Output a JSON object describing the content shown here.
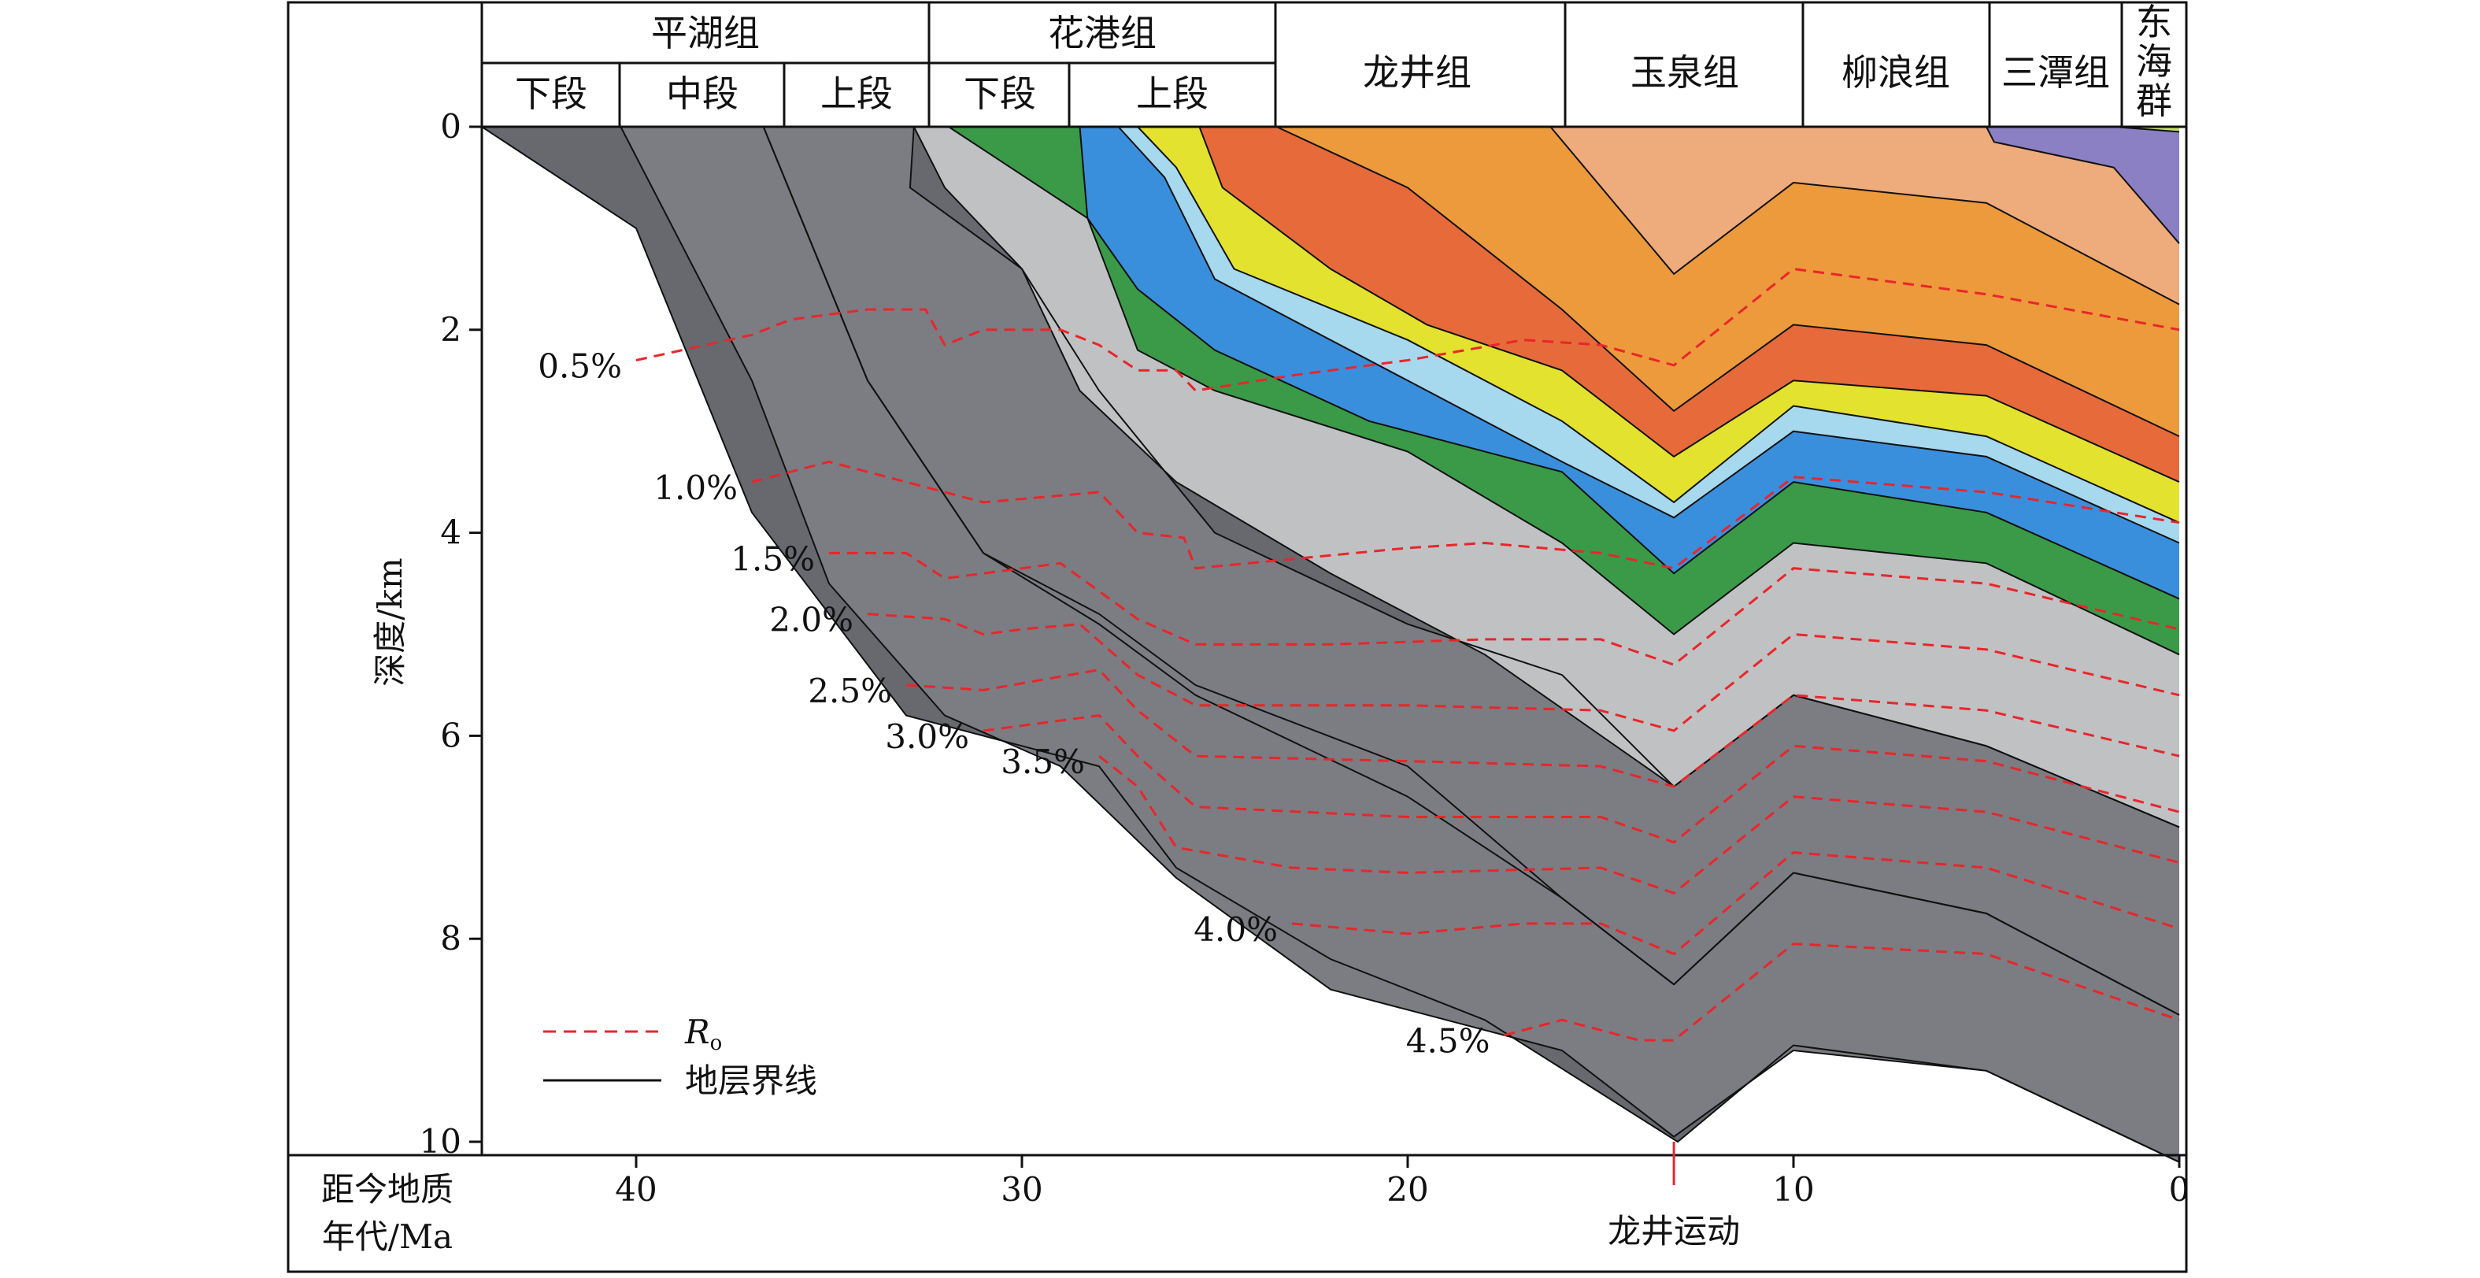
{
  "chart_data": {
    "type": "area",
    "xlabel": "距今地质年代/Ma",
    "ylabel": "深度/km",
    "xlim": [
      44,
      0
    ],
    "ylim": [
      0,
      10
    ],
    "xticks": [
      40,
      30,
      20,
      10,
      0
    ],
    "yticks": [
      0,
      2,
      4,
      6,
      8,
      10
    ],
    "event": {
      "label": "龙井运动",
      "x": 13.1
    },
    "formations": [
      {
        "name": "平湖组",
        "members": [
          "下段",
          "中段",
          "上段"
        ],
        "x_range": [
          44,
          32
        ]
      },
      {
        "name": "花港组",
        "members": [
          "下段",
          "上段"
        ],
        "x_range": [
          32,
          23
        ]
      },
      {
        "name": "龙井组",
        "members": [],
        "x_range": [
          23,
          16
        ]
      },
      {
        "name": "玉泉组",
        "members": [],
        "x_range": [
          16,
          10
        ]
      },
      {
        "name": "柳浪组",
        "members": [],
        "x_range": [
          10,
          5.3
        ]
      },
      {
        "name": "三潭组",
        "members": [],
        "x_range": [
          5.3,
          1.7
        ]
      },
      {
        "name": "东海群",
        "members": [],
        "x_range": [
          1.7,
          0
        ]
      }
    ],
    "strata_tops": [
      {
        "color": "#67696e",
        "points": [
          [
            44,
            0
          ],
          [
            40,
            1
          ],
          [
            37,
            3.8
          ],
          [
            33,
            5.8
          ],
          [
            30,
            6.1
          ],
          [
            28,
            6.3
          ],
          [
            26,
            7.3
          ],
          [
            22,
            8.2
          ],
          [
            18,
            8.8
          ],
          [
            13,
            10
          ],
          [
            10,
            9.05
          ],
          [
            5,
            9.3
          ],
          [
            0,
            10.2
          ]
        ]
      },
      {
        "color": "#7b7d82",
        "points": [
          [
            40.4,
            0
          ],
          [
            37,
            2.5
          ],
          [
            35,
            4.5
          ],
          [
            32,
            5.8
          ],
          [
            29,
            6.3
          ],
          [
            26,
            7.4
          ],
          [
            22,
            8.5
          ],
          [
            16,
            9.1
          ],
          [
            13.1,
            9.95
          ],
          [
            10,
            9.1
          ],
          [
            5,
            9.3
          ],
          [
            0,
            10.2
          ]
        ]
      },
      {
        "color": "#67696e",
        "points": [
          [
            36.7,
            0
          ],
          [
            34,
            2.5
          ],
          [
            31,
            4.2
          ],
          [
            28,
            4.8
          ],
          [
            25.5,
            5.5
          ],
          [
            20,
            6.3
          ],
          [
            16,
            7.6
          ],
          [
            13.1,
            8.45
          ],
          [
            10,
            7.35
          ],
          [
            5,
            7.75
          ],
          [
            0,
            8.75
          ]
        ]
      },
      {
        "color": "#7b7d82",
        "points": [
          [
            36.7,
            0
          ],
          [
            34,
            2.5
          ],
          [
            31,
            4.2
          ],
          [
            28,
            4.9
          ],
          [
            25.5,
            5.6
          ],
          [
            20,
            6.6
          ],
          [
            16,
            7.6
          ],
          [
            13.1,
            8.45
          ],
          [
            10,
            7.35
          ],
          [
            5,
            7.75
          ],
          [
            0,
            8.75
          ]
        ]
      },
      {
        "color": "#67696e",
        "points": [
          [
            32.8,
            0
          ],
          [
            32.9,
            0.6
          ],
          [
            30,
            1.4
          ],
          [
            28,
            2.6
          ],
          [
            25,
            4
          ],
          [
            20,
            4.9
          ],
          [
            16,
            5.4
          ],
          [
            13.1,
            6.5
          ],
          [
            10,
            5.6
          ],
          [
            5,
            6.1
          ],
          [
            0,
            6.9
          ]
        ]
      },
      {
        "color": "#c0c1c3",
        "points": [
          [
            32.8,
            0
          ],
          [
            32,
            0.6
          ],
          [
            30,
            1.4
          ],
          [
            28.5,
            2.6
          ],
          [
            26,
            3.5
          ],
          [
            22,
            4.4
          ],
          [
            18,
            5.2
          ],
          [
            13.1,
            6.5
          ],
          [
            10,
            5.6
          ],
          [
            5,
            6.1
          ],
          [
            0,
            6.9
          ]
        ]
      },
      {
        "color": "#3a9a48",
        "points": [
          [
            31.9,
            0
          ],
          [
            28.3,
            0.9
          ],
          [
            27,
            2.2
          ],
          [
            25,
            2.6
          ],
          [
            20,
            3.2
          ],
          [
            16,
            4.1
          ],
          [
            13.1,
            5
          ],
          [
            10,
            4.1
          ],
          [
            5,
            4.3
          ],
          [
            0,
            5.2
          ]
        ]
      },
      {
        "color": "#3a8fdc",
        "points": [
          [
            28.5,
            0
          ],
          [
            28.3,
            0.9
          ],
          [
            27,
            1.6
          ],
          [
            25,
            2.2
          ],
          [
            21,
            2.9
          ],
          [
            16,
            3.4
          ],
          [
            13.1,
            4.4
          ],
          [
            10,
            3.5
          ],
          [
            5,
            3.8
          ],
          [
            0,
            4.65
          ]
        ]
      },
      {
        "color": "#a6d8ee",
        "points": [
          [
            27.5,
            0
          ],
          [
            26.3,
            0.5
          ],
          [
            25,
            1.5
          ],
          [
            20,
            2.5
          ],
          [
            16,
            3.3
          ],
          [
            13.1,
            3.85
          ],
          [
            10,
            3
          ],
          [
            5,
            3.25
          ],
          [
            0,
            4.1
          ]
        ]
      },
      {
        "color": "#e3e22f",
        "points": [
          [
            27,
            0
          ],
          [
            26,
            0.4
          ],
          [
            24.5,
            1.4
          ],
          [
            20,
            2.1
          ],
          [
            16,
            2.9
          ],
          [
            13.1,
            3.7
          ],
          [
            10,
            2.75
          ],
          [
            5,
            3.05
          ],
          [
            0,
            3.9
          ]
        ]
      },
      {
        "color": "#e76a3a",
        "points": [
          [
            25.4,
            0
          ],
          [
            24.8,
            0.6
          ],
          [
            22,
            1.4
          ],
          [
            19.5,
            1.95
          ],
          [
            16,
            2.4
          ],
          [
            13.1,
            3.25
          ],
          [
            10,
            2.5
          ],
          [
            5,
            2.65
          ],
          [
            0,
            3.5
          ]
        ]
      },
      {
        "color": "#ec9a3c",
        "points": [
          [
            23.4,
            0
          ],
          [
            20,
            0.6
          ],
          [
            16,
            1.8
          ],
          [
            13.1,
            2.8
          ],
          [
            10,
            1.95
          ],
          [
            5,
            2.15
          ],
          [
            0,
            3.05
          ]
        ]
      },
      {
        "color": "#eeab7c",
        "points": [
          [
            16.3,
            0
          ],
          [
            13.1,
            1.45
          ],
          [
            10,
            0.55
          ],
          [
            5,
            0.75
          ],
          [
            0,
            1.75
          ]
        ]
      },
      {
        "color": "#8b80c4",
        "points": [
          [
            5,
            0
          ],
          [
            4.8,
            0.15
          ],
          [
            1.7,
            0.4
          ],
          [
            0,
            1.15
          ]
        ]
      },
      {
        "color": "#c7e06e",
        "points": [
          [
            1.7,
            0
          ],
          [
            0,
            0.05
          ]
        ]
      }
    ],
    "ro_isolines": [
      {
        "label": "0.5%",
        "points": [
          [
            40,
            2.3
          ],
          [
            37,
            2.05
          ],
          [
            36,
            1.9
          ],
          [
            34,
            1.8
          ],
          [
            32.5,
            1.8
          ],
          [
            32,
            2.15
          ],
          [
            31,
            2
          ],
          [
            29,
            2
          ],
          [
            28,
            2.15
          ],
          [
            27,
            2.4
          ],
          [
            26,
            2.4
          ],
          [
            25.5,
            2.6
          ],
          [
            23,
            2.45
          ],
          [
            20,
            2.3
          ],
          [
            17,
            2.1
          ],
          [
            15,
            2.15
          ],
          [
            13.1,
            2.35
          ],
          [
            10,
            1.4
          ],
          [
            5,
            1.65
          ],
          [
            0,
            2
          ]
        ]
      },
      {
        "label": "1.0%",
        "points": [
          [
            37,
            3.5
          ],
          [
            35,
            3.3
          ],
          [
            33,
            3.5
          ],
          [
            31,
            3.7
          ],
          [
            28,
            3.6
          ],
          [
            27,
            4
          ],
          [
            25.8,
            4.05
          ],
          [
            25.5,
            4.35
          ],
          [
            20,
            4.15
          ],
          [
            18,
            4.1
          ],
          [
            15,
            4.2
          ],
          [
            13.1,
            4.35
          ],
          [
            10,
            3.45
          ],
          [
            5,
            3.6
          ],
          [
            0,
            3.9
          ]
        ]
      },
      {
        "label": "1.5%",
        "points": [
          [
            35,
            4.2
          ],
          [
            33,
            4.2
          ],
          [
            32,
            4.45
          ],
          [
            31,
            4.4
          ],
          [
            29,
            4.3
          ],
          [
            27,
            4.85
          ],
          [
            25.5,
            5.1
          ],
          [
            22,
            5.1
          ],
          [
            18,
            5.05
          ],
          [
            15,
            5.05
          ],
          [
            13.1,
            5.3
          ],
          [
            10,
            4.35
          ],
          [
            5,
            4.5
          ],
          [
            0,
            4.95
          ]
        ]
      },
      {
        "label": "2.0%",
        "points": [
          [
            34,
            4.8
          ],
          [
            32,
            4.85
          ],
          [
            31,
            5
          ],
          [
            30,
            4.95
          ],
          [
            28.5,
            4.9
          ],
          [
            27,
            5.4
          ],
          [
            25.5,
            5.7
          ],
          [
            20,
            5.7
          ],
          [
            15,
            5.75
          ],
          [
            13.1,
            5.95
          ],
          [
            10,
            5
          ],
          [
            5,
            5.15
          ],
          [
            0,
            5.6
          ]
        ]
      },
      {
        "label": "2.5%",
        "points": [
          [
            33,
            5.5
          ],
          [
            31,
            5.55
          ],
          [
            28,
            5.35
          ],
          [
            27,
            5.75
          ],
          [
            25.5,
            6.2
          ],
          [
            20,
            6.25
          ],
          [
            15,
            6.3
          ],
          [
            13.1,
            6.5
          ],
          [
            10,
            5.6
          ],
          [
            5,
            5.75
          ],
          [
            0,
            6.2
          ]
        ]
      },
      {
        "label": "3.0%",
        "points": [
          [
            31,
            5.95
          ],
          [
            28,
            5.8
          ],
          [
            27,
            6.2
          ],
          [
            25.5,
            6.7
          ],
          [
            20,
            6.8
          ],
          [
            15,
            6.8
          ],
          [
            13.1,
            7.05
          ],
          [
            10,
            6.1
          ],
          [
            5,
            6.25
          ],
          [
            0,
            6.75
          ]
        ]
      },
      {
        "label": "3.5%",
        "points": [
          [
            28,
            6.2
          ],
          [
            27,
            6.5
          ],
          [
            26,
            7.1
          ],
          [
            23,
            7.3
          ],
          [
            20,
            7.35
          ],
          [
            15,
            7.3
          ],
          [
            13.1,
            7.55
          ],
          [
            10,
            6.6
          ],
          [
            5,
            6.75
          ],
          [
            0,
            7.25
          ]
        ]
      },
      {
        "label": "4.0%",
        "points": [
          [
            23,
            7.85
          ],
          [
            20,
            7.95
          ],
          [
            17,
            7.85
          ],
          [
            15,
            7.85
          ],
          [
            13.1,
            8.15
          ],
          [
            10,
            7.15
          ],
          [
            5,
            7.3
          ],
          [
            0,
            7.9
          ]
        ]
      },
      {
        "label": "4.5%",
        "points": [
          [
            17.5,
            8.95
          ],
          [
            16,
            8.8
          ],
          [
            14,
            9
          ],
          [
            13.1,
            9
          ],
          [
            10,
            8.05
          ],
          [
            5,
            8.15
          ],
          [
            0,
            8.8
          ]
        ]
      }
    ],
    "legend": [
      {
        "label": "Ro",
        "style": "dashed",
        "color": "#e8262b"
      },
      {
        "label": "地层界线",
        "style": "solid",
        "color": "#111111"
      }
    ]
  }
}
